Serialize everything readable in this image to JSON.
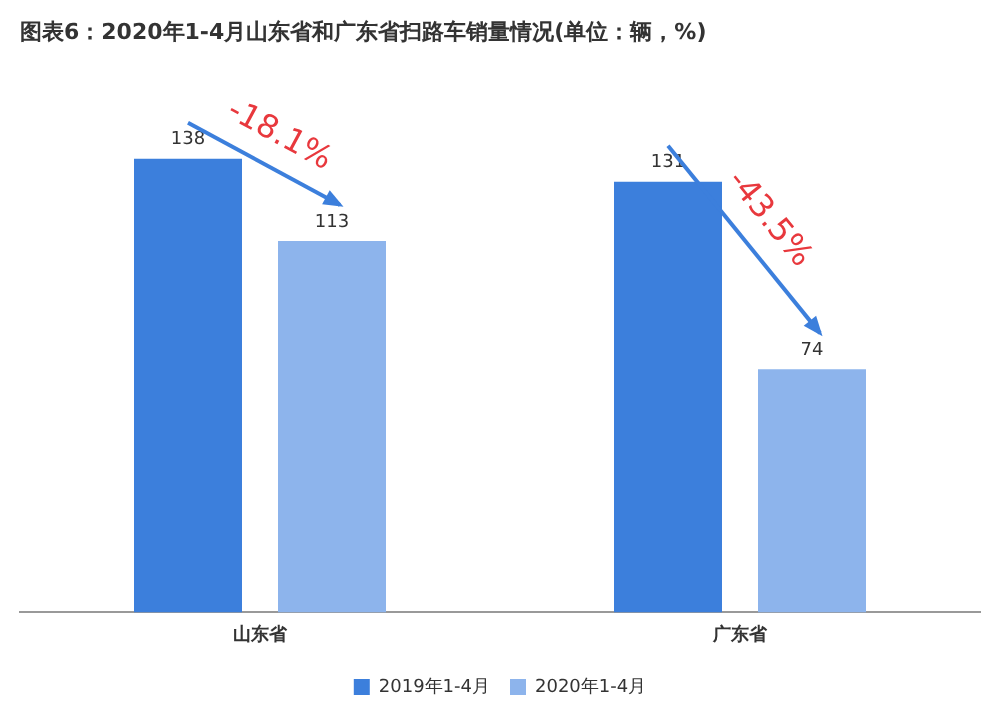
{
  "chart_data": {
    "type": "bar",
    "title": "图表6：2020年1-4月山东省和广东省扫路车销量情况(单位：辆，%)",
    "categories": [
      "山东省",
      "广东省"
    ],
    "series": [
      {
        "name": "2019年1-4月",
        "color": "#3c7fdc",
        "values": [
          138,
          131
        ]
      },
      {
        "name": "2020年1-4月",
        "color": "#8db4ec",
        "values": [
          113,
          74
        ]
      }
    ],
    "data_labels": true,
    "legend": "bottom",
    "grid": false,
    "annotations": [
      "-18.1%",
      "-43.5%"
    ]
  }
}
